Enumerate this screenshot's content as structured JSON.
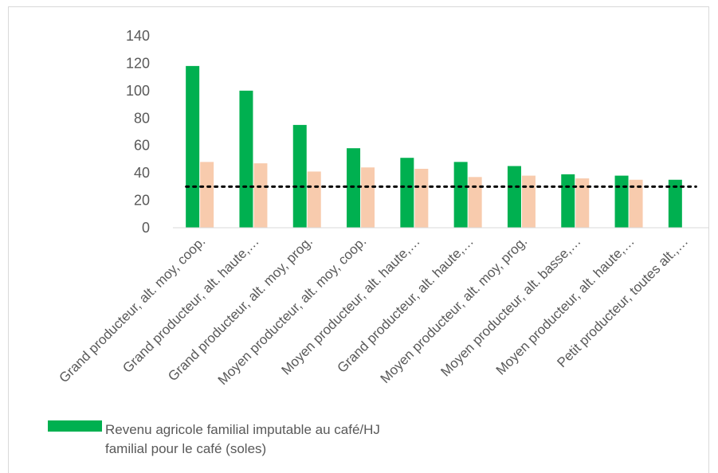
{
  "chart_data": {
    "type": "bar",
    "categories": [
      "Grand producteur, alt. moy, coop.",
      "Grand producteur, alt. haute,…",
      "Grand producteur, alt. moy, prog.",
      "Moyen producteur, alt. moy, coop.",
      "Moyen producteur, alt. haute,…",
      "Grand producteur, alt. haute,…",
      "Moyen producteur, alt. moy, prog.",
      "Moyen producteur, alt. basse,…",
      "Moyen producteur, alt. haute,…",
      "Petit producteur, toutes alt.,…"
    ],
    "series": [
      {
        "name": "Revenu agricole familial imputable au café/HJ familial pour le café (soles)",
        "legend_lines": [
          "Revenu agricole familial imputable au café/HJ",
          "familial pour le café (soles)"
        ],
        "color": "#00b050",
        "values": [
          118,
          100,
          75,
          58,
          51,
          48,
          45,
          39,
          38,
          35
        ]
      },
      {
        "color": "#f8cbad",
        "values": [
          48,
          47,
          41,
          44,
          43,
          37,
          38,
          36,
          35,
          null
        ]
      }
    ],
    "reference_line": {
      "value": 30,
      "style": "dotted",
      "color": "#000000"
    },
    "yticks": [
      "0",
      "20",
      "40",
      "60",
      "80",
      "100",
      "120",
      "140"
    ],
    "ylim": [
      0,
      140
    ],
    "grid": false,
    "legend_position": "bottom-left"
  }
}
